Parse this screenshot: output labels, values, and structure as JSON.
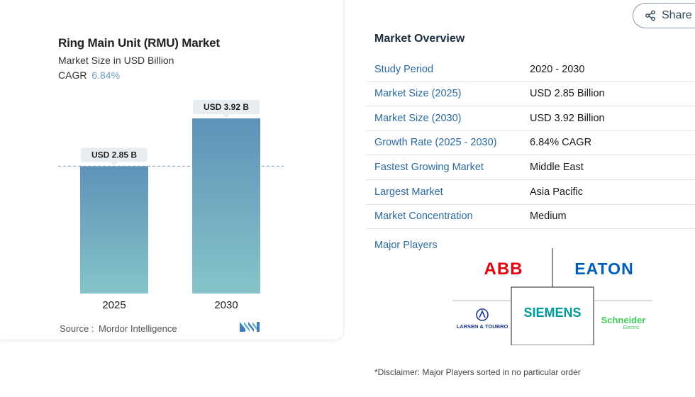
{
  "chart": {
    "title": "Ring Main Unit (RMU) Market",
    "subtitle": "Market Size in USD Billion",
    "cagr_label": "CAGR",
    "cagr_value": "6.84%",
    "source_label": "Source :",
    "source_name": "Mordor Intelligence"
  },
  "chart_data": {
    "type": "bar",
    "categories": [
      "2025",
      "2030"
    ],
    "values": [
      2.85,
      3.92
    ],
    "data_labels": [
      "USD 2.85 B",
      "USD 3.92 B"
    ],
    "title": "Ring Main Unit (RMU) Market",
    "subtitle": "Market Size in USD Billion",
    "ylim": [
      0,
      3.92
    ],
    "grid": false,
    "reference_line": 2.85,
    "colors": {
      "bar_top": "#5e92b8",
      "bar_bottom": "#86c4c9",
      "ref_line": "#7a9dbd",
      "label_bg": "#e8edf1"
    }
  },
  "share": {
    "label": "Share"
  },
  "overview": {
    "title": "Market Overview",
    "rows": [
      {
        "label": "Study Period",
        "value": "2020 - 2030"
      },
      {
        "label": "Market Size (2025)",
        "value": "USD 2.85 Billion"
      },
      {
        "label": "Market Size (2030)",
        "value": "USD 3.92 Billion"
      },
      {
        "label": "Growth Rate (2025 - 2030)",
        "value": "6.84% CAGR"
      },
      {
        "label": "Fastest Growing Market",
        "value": "Middle East"
      },
      {
        "label": "Largest Market",
        "value": "Asia Pacific"
      },
      {
        "label": "Market Concentration",
        "value": "Medium"
      }
    ],
    "major_players_label": "Major Players",
    "players": {
      "abb": "ABB",
      "eaton": "EATON",
      "siemens": "SIEMENS",
      "lt": "LARSEN & TOUBRO",
      "schneider": "Schneider",
      "schneider_sub": "Electric"
    },
    "disclaimer": "*Disclaimer: Major Players sorted in no particular order"
  },
  "icons": {
    "share": "share-icon",
    "logo": "mordor-intelligence-logo"
  }
}
